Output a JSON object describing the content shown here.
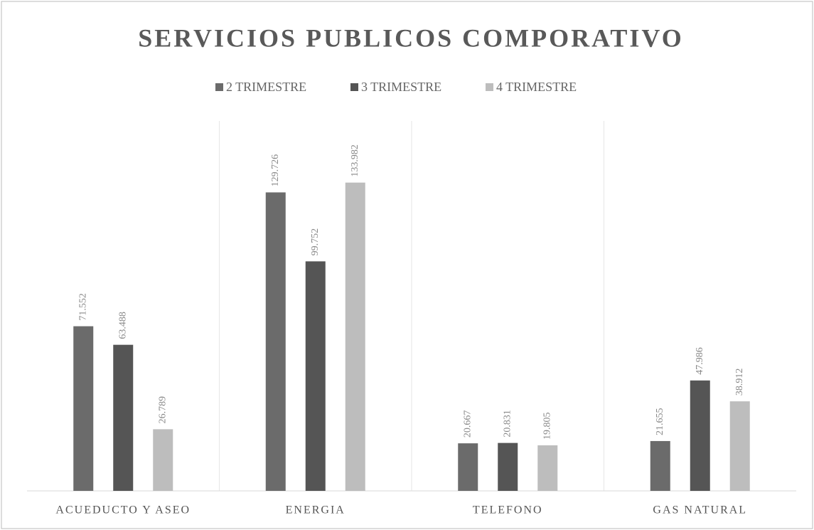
{
  "chart_data": {
    "type": "bar",
    "title": "SERVICIOS PUBLICOS COMPORATIVO",
    "categories": [
      "ACUEDUCTO Y ASEO",
      "ENERGIA",
      "TELEFONO",
      "GAS NATURAL"
    ],
    "series": [
      {
        "name": "2 TRIMESTRE",
        "color": "#6b6b6b",
        "values": [
          71552,
          129726,
          20667,
          21655
        ],
        "value_labels": [
          "71.552",
          "129.726",
          "20.667",
          "21.655"
        ]
      },
      {
        "name": "3 TRIMESTRE",
        "color": "#555555",
        "values": [
          63488,
          99752,
          20831,
          47986
        ],
        "value_labels": [
          "63.488",
          "99.752",
          "20.831",
          "47.986"
        ]
      },
      {
        "name": "4 TRIMESTRE",
        "color": "#bdbdbd",
        "values": [
          26789,
          133982,
          19805,
          38912
        ],
        "value_labels": [
          "26.789",
          "133.982",
          "19.805",
          "38.912"
        ]
      }
    ]
  }
}
